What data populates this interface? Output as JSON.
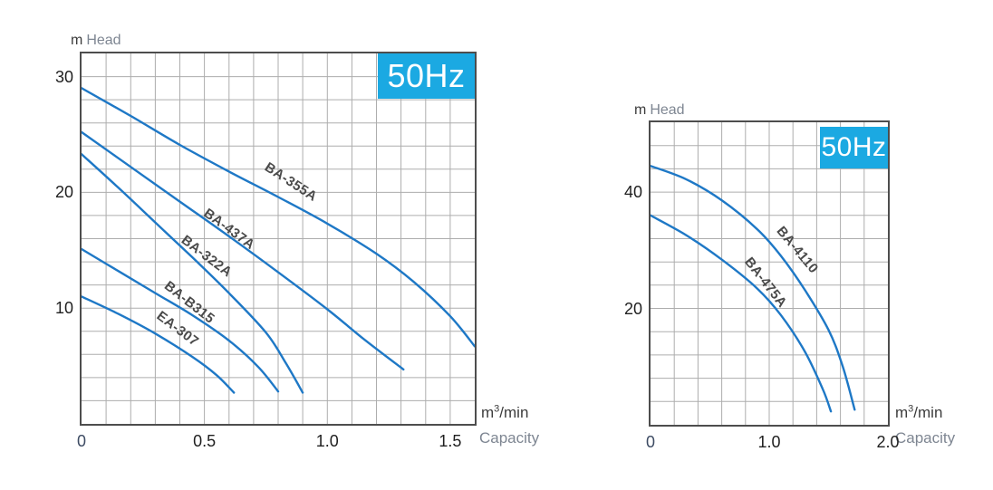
{
  "colors": {
    "curve": "#1e78c6",
    "grid": "#adadad",
    "border": "#4d4d4d",
    "badge_bg": "#1ba9e2",
    "badge_text": "#ffffff",
    "tick_text": "#1f1f1f",
    "origin_text": "#3d4b63",
    "axis_word": "#7e8692",
    "unit_text": "#3c3c3c",
    "label_text": "#4a4a4a"
  },
  "chart_data": [
    {
      "type": "line",
      "badge": "50Hz",
      "x_axis": {
        "name": "Capacity",
        "unit": "m³/min",
        "unit_parts": {
          "base": "m",
          "sup": "3",
          "rest": "/min"
        },
        "min": 0,
        "max": 1.6,
        "cells": 16,
        "ticks": [
          {
            "v": 0,
            "label": "0"
          },
          {
            "v": 0.5,
            "label": "0.5"
          },
          {
            "v": 1.0,
            "label": "1.0"
          },
          {
            "v": 1.5,
            "label": "1.5"
          }
        ]
      },
      "y_axis": {
        "name": "Head",
        "unit": "m",
        "min": 0,
        "max": 32,
        "cells": 16,
        "ticks": [
          {
            "v": 10,
            "label": "10"
          },
          {
            "v": 20,
            "label": "20"
          },
          {
            "v": 30,
            "label": "30"
          }
        ]
      },
      "grid": true,
      "series": [
        {
          "name": "BA-355A",
          "label": {
            "x": 0.85,
            "y": 20.9,
            "angle": 33
          },
          "points": [
            [
              0,
              29
            ],
            [
              0.2,
              26.6
            ],
            [
              0.4,
              24.1
            ],
            [
              0.6,
              21.8
            ],
            [
              0.8,
              19.6
            ],
            [
              1.0,
              17.3
            ],
            [
              1.2,
              14.7
            ],
            [
              1.35,
              12.3
            ],
            [
              1.5,
              9.3
            ],
            [
              1.6,
              6.7
            ]
          ]
        },
        {
          "name": "BA-437A",
          "label": {
            "x": 0.6,
            "y": 16.8,
            "angle": 36
          },
          "points": [
            [
              0,
              25.2
            ],
            [
              0.2,
              22.2
            ],
            [
              0.4,
              19.2
            ],
            [
              0.6,
              16.2
            ],
            [
              0.8,
              13.1
            ],
            [
              1.0,
              9.9
            ],
            [
              1.15,
              7.3
            ],
            [
              1.31,
              4.7
            ]
          ]
        },
        {
          "name": "BA-322A",
          "label": {
            "x": 0.51,
            "y": 14.5,
            "angle": 37
          },
          "points": [
            [
              0,
              23.3
            ],
            [
              0.15,
              20.4
            ],
            [
              0.3,
              17.4
            ],
            [
              0.45,
              14.4
            ],
            [
              0.6,
              11.3
            ],
            [
              0.75,
              7.9
            ],
            [
              0.83,
              5.3
            ],
            [
              0.9,
              2.7
            ]
          ]
        },
        {
          "name": "BA-B315",
          "label": {
            "x": 0.44,
            "y": 10.5,
            "angle": 38
          },
          "points": [
            [
              0,
              15.1
            ],
            [
              0.15,
              13.2
            ],
            [
              0.3,
              11.3
            ],
            [
              0.45,
              9.4
            ],
            [
              0.6,
              7.2
            ],
            [
              0.72,
              4.9
            ],
            [
              0.8,
              2.8
            ]
          ]
        },
        {
          "name": "EA-307",
          "label": {
            "x": 0.39,
            "y": 8.2,
            "angle": 37
          },
          "points": [
            [
              0,
              11
            ],
            [
              0.15,
              9.5
            ],
            [
              0.3,
              7.8
            ],
            [
              0.45,
              5.8
            ],
            [
              0.55,
              4.2
            ],
            [
              0.62,
              2.7
            ]
          ]
        }
      ]
    },
    {
      "type": "line",
      "badge": "50Hz",
      "x_axis": {
        "name": "Capacity",
        "unit": "m³/min",
        "unit_parts": {
          "base": "m",
          "sup": "3",
          "rest": "/min"
        },
        "min": 0,
        "max": 2.0,
        "cells": 10,
        "ticks": [
          {
            "v": 0,
            "label": "0"
          },
          {
            "v": 1.0,
            "label": "1.0"
          },
          {
            "v": 2.0,
            "label": "2.0"
          }
        ]
      },
      "y_axis": {
        "name": "Head",
        "unit": "m",
        "min": 0,
        "max": 52,
        "cells": 13,
        "ticks": [
          {
            "v": 20,
            "label": "20"
          },
          {
            "v": 40,
            "label": "40"
          }
        ]
      },
      "grid": true,
      "series": [
        {
          "name": "BA-4110",
          "label": {
            "x": 1.24,
            "y": 30.1,
            "angle": 50
          },
          "points": [
            [
              0,
              44.5
            ],
            [
              0.3,
              42.2
            ],
            [
              0.6,
              38.6
            ],
            [
              0.9,
              33.6
            ],
            [
              1.1,
              29
            ],
            [
              1.3,
              23.2
            ],
            [
              1.5,
              16.3
            ],
            [
              1.62,
              10
            ],
            [
              1.72,
              2.6
            ]
          ]
        },
        {
          "name": "BA-475A",
          "label": {
            "x": 0.97,
            "y": 24.4,
            "angle": 52
          },
          "points": [
            [
              0,
              36
            ],
            [
              0.3,
              32.6
            ],
            [
              0.6,
              28.4
            ],
            [
              0.9,
              23.4
            ],
            [
              1.1,
              18.8
            ],
            [
              1.3,
              12.6
            ],
            [
              1.45,
              6.2
            ],
            [
              1.52,
              2.3
            ]
          ]
        }
      ]
    }
  ]
}
